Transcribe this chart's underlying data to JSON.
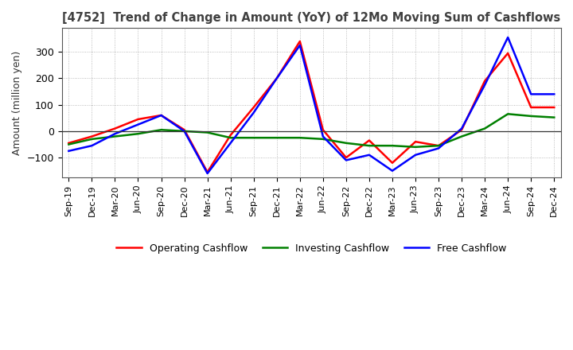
{
  "title": "[4752]  Trend of Change in Amount (YoY) of 12Mo Moving Sum of Cashflows",
  "ylabel": "Amount (million yen)",
  "x_labels": [
    "Sep-19",
    "Dec-19",
    "Mar-20",
    "Jun-20",
    "Sep-20",
    "Dec-20",
    "Mar-21",
    "Jun-21",
    "Sep-21",
    "Dec-21",
    "Mar-22",
    "Jun-22",
    "Sep-22",
    "Dec-22",
    "Mar-23",
    "Jun-23",
    "Sep-23",
    "Dec-23",
    "Mar-24",
    "Jun-24",
    "Sep-24",
    "Dec-24"
  ],
  "operating": [
    -45,
    -20,
    10,
    45,
    60,
    5,
    -155,
    -15,
    90,
    200,
    340,
    5,
    -100,
    -35,
    -120,
    -40,
    -55,
    5,
    190,
    295,
    90,
    90
  ],
  "investing": [
    -50,
    -30,
    -20,
    -10,
    5,
    0,
    -5,
    -25,
    -25,
    -25,
    -25,
    -30,
    -45,
    -55,
    -55,
    -60,
    -55,
    -20,
    10,
    65,
    57,
    52
  ],
  "free": [
    -75,
    -55,
    -10,
    25,
    60,
    0,
    -160,
    -45,
    70,
    200,
    325,
    -20,
    -110,
    -90,
    -150,
    -90,
    -65,
    10,
    175,
    355,
    140,
    140
  ],
  "ylim": [
    -175,
    390
  ],
  "yticks": [
    -100,
    0,
    100,
    200,
    300
  ],
  "legend_labels": [
    "Operating Cashflow",
    "Investing Cashflow",
    "Free Cashflow"
  ],
  "line_colors": [
    "#ff0000",
    "#008000",
    "#0000ff"
  ],
  "background_color": "#ffffff",
  "title_color": "#404040"
}
